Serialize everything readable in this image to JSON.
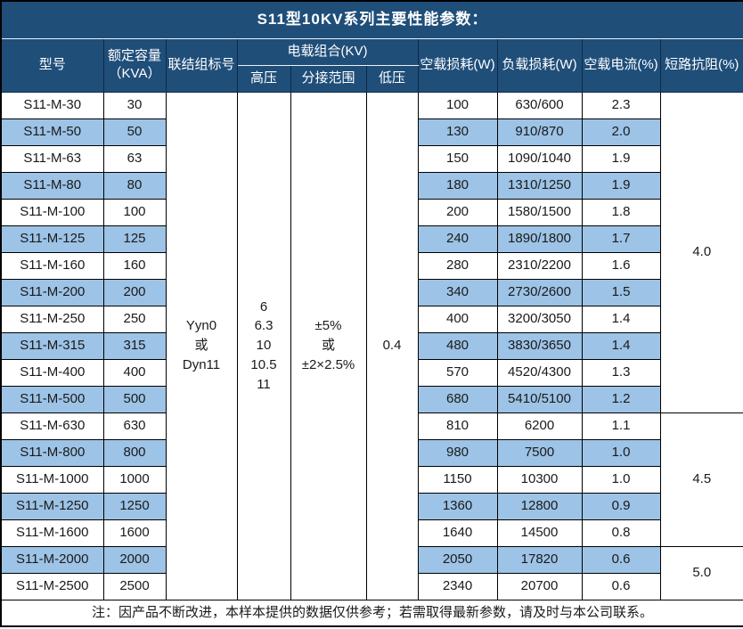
{
  "title": "S11型10KV系列主要性能参数：",
  "header": {
    "model": "型号",
    "capacity": [
      "额定容量",
      "（KVA）"
    ],
    "connection": "联结组标号",
    "load_combo": "电载组合(KV)",
    "hv": "高压",
    "tap_range": "分接范围",
    "lv": "低压",
    "no_load_loss": "空载损耗(W)",
    "load_loss": "负载损耗(W)",
    "no_load_current": "空载电流(%)",
    "impedance": "短路抗阻(%)"
  },
  "merged": {
    "connection_lines": [
      "Yyn0",
      "或",
      "Dyn11"
    ],
    "hv_lines": [
      "6",
      "6.3",
      "10",
      "10.5",
      "11"
    ],
    "tap_lines": [
      "±5%",
      "或",
      "±2×2.5%"
    ],
    "lv": "0.4"
  },
  "impedance_groups": [
    {
      "value": "4.0",
      "rows": 12
    },
    {
      "value": "4.5",
      "rows": 5
    },
    {
      "value": "5.0",
      "rows": 2
    }
  ],
  "rows": [
    {
      "model": "S11-M-30",
      "capacity": "30",
      "no_load_loss": "100",
      "load_loss": "630/600",
      "no_load_current": "2.3"
    },
    {
      "model": "S11-M-50",
      "capacity": "50",
      "no_load_loss": "130",
      "load_loss": "910/870",
      "no_load_current": "2.0"
    },
    {
      "model": "S11-M-63",
      "capacity": "63",
      "no_load_loss": "150",
      "load_loss": "1090/1040",
      "no_load_current": "1.9"
    },
    {
      "model": "S11-M-80",
      "capacity": "80",
      "no_load_loss": "180",
      "load_loss": "1310/1250",
      "no_load_current": "1.9"
    },
    {
      "model": "S11-M-100",
      "capacity": "100",
      "no_load_loss": "200",
      "load_loss": "1580/1500",
      "no_load_current": "1.8"
    },
    {
      "model": "S11-M-125",
      "capacity": "125",
      "no_load_loss": "240",
      "load_loss": "1890/1800",
      "no_load_current": "1.7"
    },
    {
      "model": "S11-M-160",
      "capacity": "160",
      "no_load_loss": "280",
      "load_loss": "2310/2200",
      "no_load_current": "1.6"
    },
    {
      "model": "S11-M-200",
      "capacity": "200",
      "no_load_loss": "340",
      "load_loss": "2730/2600",
      "no_load_current": "1.5"
    },
    {
      "model": "S11-M-250",
      "capacity": "250",
      "no_load_loss": "400",
      "load_loss": "3200/3050",
      "no_load_current": "1.4"
    },
    {
      "model": "S11-M-315",
      "capacity": "315",
      "no_load_loss": "480",
      "load_loss": "3830/3650",
      "no_load_current": "1.4"
    },
    {
      "model": "S11-M-400",
      "capacity": "400",
      "no_load_loss": "570",
      "load_loss": "4520/4300",
      "no_load_current": "1.3"
    },
    {
      "model": "S11-M-500",
      "capacity": "500",
      "no_load_loss": "680",
      "load_loss": "5410/5100",
      "no_load_current": "1.2"
    },
    {
      "model": "S11-M-630",
      "capacity": "630",
      "no_load_loss": "810",
      "load_loss": "6200",
      "no_load_current": "1.1"
    },
    {
      "model": "S11-M-800",
      "capacity": "800",
      "no_load_loss": "980",
      "load_loss": "7500",
      "no_load_current": "1.0"
    },
    {
      "model": "S11-M-1000",
      "capacity": "1000",
      "no_load_loss": "1150",
      "load_loss": "10300",
      "no_load_current": "1.0"
    },
    {
      "model": "S11-M-1250",
      "capacity": "1250",
      "no_load_loss": "1360",
      "load_loss": "12800",
      "no_load_current": "0.9"
    },
    {
      "model": "S11-M-1600",
      "capacity": "1600",
      "no_load_loss": "1640",
      "load_loss": "14500",
      "no_load_current": "0.8"
    },
    {
      "model": "S11-M-2000",
      "capacity": "2000",
      "no_load_loss": "2050",
      "load_loss": "17820",
      "no_load_current": "0.6"
    },
    {
      "model": "S11-M-2500",
      "capacity": "2500",
      "no_load_loss": "2340",
      "load_loss": "20700",
      "no_load_current": "0.6"
    }
  ],
  "note": "注：因产品不断改进，本样本提供的数据仅供参考；若需取得最新参数，请及时与本公司联系。",
  "colors": {
    "header_bg": "#1F4E79",
    "stripe_bg": "#9DC3E6",
    "grid": "#000000",
    "header_text": "#ffffff",
    "body_text": "#1a1a1a"
  }
}
